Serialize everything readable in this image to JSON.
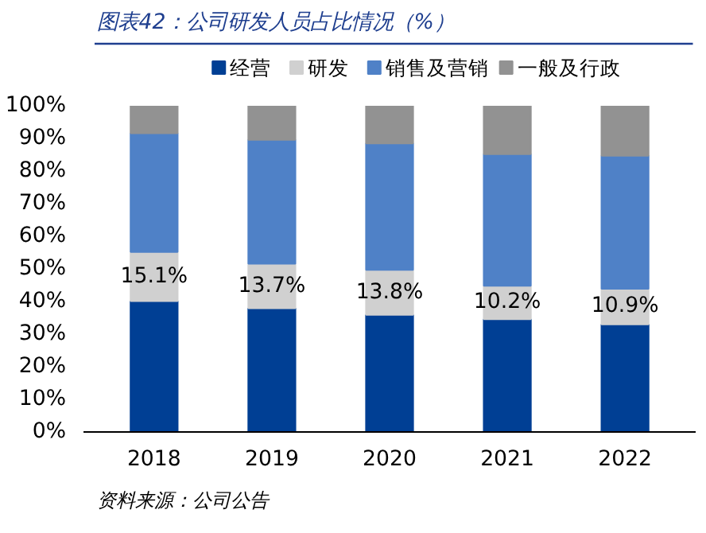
{
  "chart_data": {
    "type": "bar",
    "stacked": true,
    "title": "图表42：公司研发人员占比情况（%）",
    "categories": [
      "2018",
      "2019",
      "2020",
      "2021",
      "2022"
    ],
    "series": [
      {
        "name": "经营",
        "color": "#003f94",
        "values": [
          40.1,
          37.9,
          35.9,
          34.6,
          33.0
        ]
      },
      {
        "name": "研发",
        "color": "#d0d0d0",
        "values": [
          15.1,
          13.7,
          13.8,
          10.2,
          10.9
        ],
        "value_labels": [
          "15.1%",
          "13.7%",
          "13.8%",
          "10.2%",
          "10.9%"
        ]
      },
      {
        "name": "销售及营销",
        "color": "#4f81c7",
        "values": [
          36.4,
          38.0,
          38.8,
          40.4,
          40.8
        ]
      },
      {
        "name": "一般及行政",
        "color": "#929292",
        "values": [
          8.4,
          10.4,
          11.5,
          14.8,
          15.3
        ]
      }
    ],
    "ylim": [
      0,
      100
    ],
    "yticks": [
      {
        "value": 0,
        "label": "0%"
      },
      {
        "value": 10,
        "label": "10%"
      },
      {
        "value": 20,
        "label": "20%"
      },
      {
        "value": 30,
        "label": "30%"
      },
      {
        "value": 40,
        "label": "40%"
      },
      {
        "value": 50,
        "label": "50%"
      },
      {
        "value": 60,
        "label": "60%"
      },
      {
        "value": 70,
        "label": "70%"
      },
      {
        "value": 80,
        "label": "80%"
      },
      {
        "value": 90,
        "label": "90%"
      },
      {
        "value": 100,
        "label": "100%"
      }
    ],
    "grid": false,
    "legend": "top",
    "annotations": [
      "资料来源：公司公告"
    ]
  }
}
